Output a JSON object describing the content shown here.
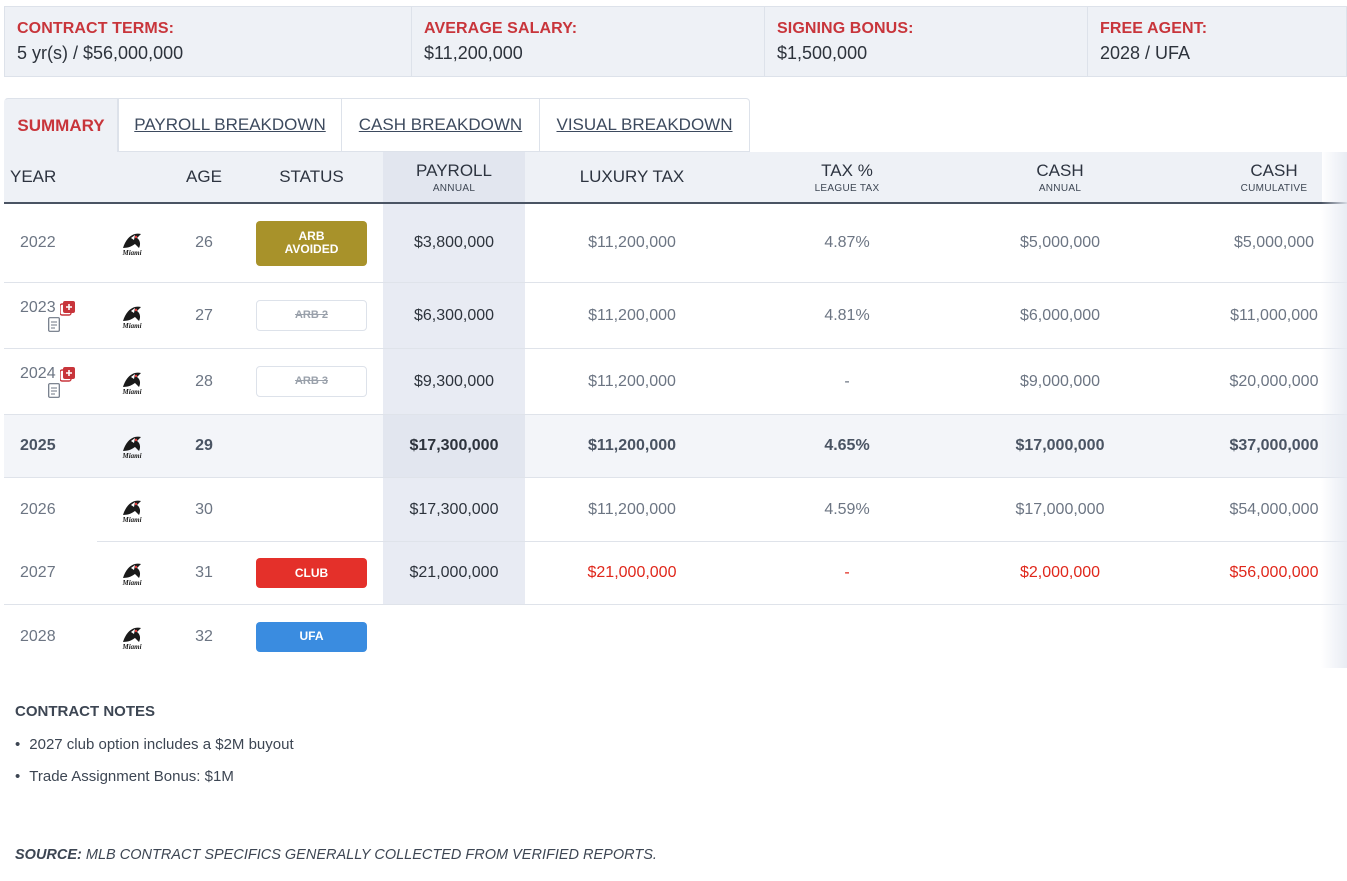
{
  "summary": [
    {
      "label": "CONTRACT TERMS:",
      "value": "5 yr(s) / $56,000,000"
    },
    {
      "label": "AVERAGE SALARY:",
      "value": "$11,200,000"
    },
    {
      "label": "SIGNING BONUS:",
      "value": "$1,500,000"
    },
    {
      "label": "FREE AGENT:",
      "value": "2028 / UFA"
    }
  ],
  "tabs": [
    "SUMMARY",
    "PAYROLL BREAKDOWN",
    "CASH BREAKDOWN",
    "VISUAL BREAKDOWN"
  ],
  "columns": {
    "year": "YEAR",
    "age": "AGE",
    "status": "STATUS",
    "payroll": "PAYROLL",
    "payroll_sub": "ANNUAL",
    "luxury_tax": "LUXURY TAX",
    "tax_pct": "TAX %",
    "tax_pct_sub": "LEAGUE TAX",
    "cash": "CASH",
    "cash_sub": "ANNUAL",
    "cash_cum": "CASH",
    "cash_cum_sub": "CUMULATIVE"
  },
  "team_logo": "Miami",
  "rows": [
    {
      "year": "2022",
      "age": "26",
      "status": "ARB AVOIDED",
      "status_line1": "ARB",
      "status_line2": "AVOIDED",
      "payroll": "$3,800,000",
      "luxury_tax": "$11,200,000",
      "tax_pct": "4.87%",
      "cash": "$5,000,000",
      "cash_cum": "$5,000,000"
    },
    {
      "year": "2023",
      "age": "27",
      "status": "ARB 2",
      "payroll": "$6,300,000",
      "luxury_tax": "$11,200,000",
      "tax_pct": "4.81%",
      "cash": "$6,000,000",
      "cash_cum": "$11,000,000"
    },
    {
      "year": "2024",
      "age": "28",
      "status": "ARB 3",
      "payroll": "$9,300,000",
      "luxury_tax": "$11,200,000",
      "tax_pct": "-",
      "cash": "$9,000,000",
      "cash_cum": "$20,000,000"
    },
    {
      "year": "2025",
      "age": "29",
      "status": "",
      "payroll": "$17,300,000",
      "luxury_tax": "$11,200,000",
      "tax_pct": "4.65%",
      "cash": "$17,000,000",
      "cash_cum": "$37,000,000"
    },
    {
      "year": "2026",
      "age": "30",
      "status": "",
      "payroll": "$17,300,000",
      "luxury_tax": "$11,200,000",
      "tax_pct": "4.59%",
      "cash": "$17,000,000",
      "cash_cum": "$54,000,000"
    },
    {
      "year": "2027",
      "age": "31",
      "status": "CLUB",
      "payroll": "$21,000,000",
      "luxury_tax": "$21,000,000",
      "tax_pct": "-",
      "cash": "$2,000,000",
      "cash_cum": "$56,000,000"
    },
    {
      "year": "2028",
      "age": "32",
      "status": "UFA"
    }
  ],
  "colors": {
    "accent_red": "#c8353b",
    "arb_avoided": "#a8922a",
    "club": "#e4302a",
    "ufa": "#3a8ce0",
    "option_red": "#e0271b"
  },
  "notes": {
    "title": "CONTRACT NOTES",
    "items": [
      "2027 club option includes a $2M buyout",
      "Trade Assignment Bonus: $1M"
    ]
  },
  "source": {
    "label": "SOURCE:",
    "text": "MLB CONTRACT SPECIFICS GENERALLY COLLECTED FROM VERIFIED REPORTS."
  }
}
